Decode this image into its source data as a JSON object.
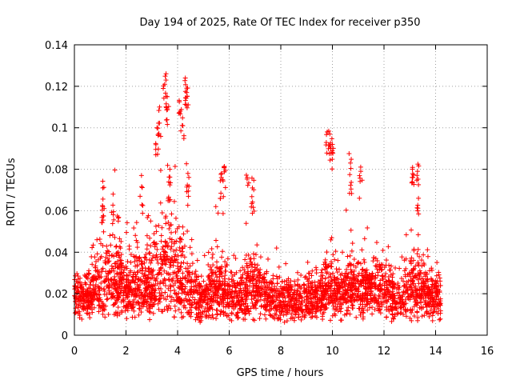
{
  "chart_data": {
    "type": "scatter",
    "title": "Day 194 of 2025, Rate Of TEC Index for receiver p350",
    "xlabel": "GPS time / hours",
    "ylabel": "ROTI / TECUs",
    "xlim": [
      0,
      16
    ],
    "ylim": [
      0,
      0.14
    ],
    "xticks": [
      "0",
      "2",
      "4",
      "6",
      "8",
      "10",
      "12",
      "14",
      "16"
    ],
    "yticks": [
      "0",
      "0.02",
      "0.04",
      "0.06",
      "0.08",
      "0.1",
      "0.12",
      "0.14"
    ],
    "grid": true,
    "marker": "+",
    "color": "#ff0000",
    "series": [
      {
        "name": "p350",
        "data_extent_hours": [
          0,
          14.2
        ],
        "baseline_range": [
          0.005,
          0.03
        ],
        "notable_points": [
          {
            "x": 1.1,
            "y": 0.071
          },
          {
            "x": 1.1,
            "y": 0.062
          },
          {
            "x": 1.5,
            "y": 0.068
          },
          {
            "x": 1.7,
            "y": 0.055
          },
          {
            "x": 2.6,
            "y": 0.077
          },
          {
            "x": 3.2,
            "y": 0.1
          },
          {
            "x": 3.3,
            "y": 0.11
          },
          {
            "x": 3.5,
            "y": 0.121
          },
          {
            "x": 3.55,
            "y": 0.123
          },
          {
            "x": 3.6,
            "y": 0.115
          },
          {
            "x": 3.7,
            "y": 0.08
          },
          {
            "x": 4.1,
            "y": 0.108
          },
          {
            "x": 4.2,
            "y": 0.101
          },
          {
            "x": 4.3,
            "y": 0.124
          },
          {
            "x": 4.35,
            "y": 0.117
          },
          {
            "x": 4.4,
            "y": 0.078
          },
          {
            "x": 5.7,
            "y": 0.078
          },
          {
            "x": 5.8,
            "y": 0.081
          },
          {
            "x": 6.7,
            "y": 0.076
          },
          {
            "x": 6.9,
            "y": 0.071
          },
          {
            "x": 9.8,
            "y": 0.098
          },
          {
            "x": 9.9,
            "y": 0.097
          },
          {
            "x": 10.0,
            "y": 0.092
          },
          {
            "x": 10.7,
            "y": 0.083
          },
          {
            "x": 11.1,
            "y": 0.079
          },
          {
            "x": 13.1,
            "y": 0.08
          },
          {
            "x": 13.3,
            "y": 0.079
          },
          {
            "x": 13.3,
            "y": 0.06
          }
        ]
      }
    ]
  }
}
